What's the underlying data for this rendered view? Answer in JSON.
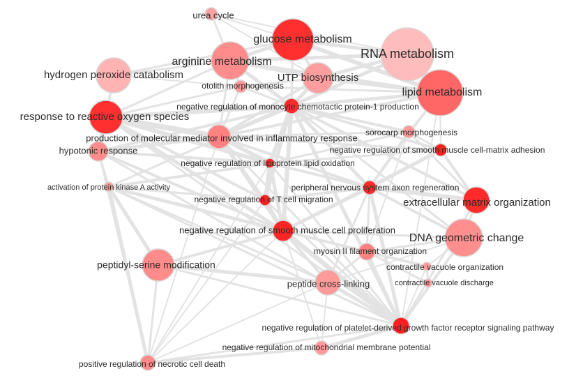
{
  "nodes": [
    {
      "id": "urea",
      "label": "urea cycle",
      "color": "#f8a2a2"
    },
    {
      "id": "glucose",
      "label": "glucose metabolism",
      "color": "#ff2f2f"
    },
    {
      "id": "rna",
      "label": "RNA metabolism",
      "color": "#ffbcbc"
    },
    {
      "id": "arginine",
      "label": "arginine metabolism",
      "color": "#ff8c8c"
    },
    {
      "id": "h2o2",
      "label": "hydrogen peroxide catabolism",
      "color": "#ffb3b3"
    },
    {
      "id": "utp",
      "label": "UTP biosynthesis",
      "color": "#ff9e9e"
    },
    {
      "id": "lipid",
      "label": "lipid metabolism",
      "color": "#ff6666"
    },
    {
      "id": "otolith",
      "label": "otolith morphogenesis",
      "color": "#ff9a9a"
    },
    {
      "id": "mcp1",
      "label": "negative regulation of monocyte chemotactic protein-1 production",
      "color": "#ff2a2a"
    },
    {
      "id": "ros",
      "label": "response to reactive oxygen species",
      "color": "#ff3030"
    },
    {
      "id": "inflam",
      "label": "production of molecular mediator involved in inflammatory response",
      "color": "#ff8282"
    },
    {
      "id": "sorocarp",
      "label": "sorocarp morphogenesis",
      "color": "#ff9999"
    },
    {
      "id": "hypotonic",
      "label": "hypotonic response",
      "color": "#ff8c8c"
    },
    {
      "id": "smcadh",
      "label": "negative regulation of smooth muscle cell-matrix adhesion",
      "color": "#ff2020"
    },
    {
      "id": "lipox",
      "label": "negative regulation of lipoprotein lipid oxidation",
      "color": "#ff2a2a"
    },
    {
      "id": "pka",
      "label": "activation of protein kinase A activity",
      "color": "#ff9a9a"
    },
    {
      "id": "pnsaxon",
      "label": "peripheral nervous system axon regeneration",
      "color": "#ff2a2a"
    },
    {
      "id": "tcell",
      "label": "negative regulation of T cell migration",
      "color": "#ff2020"
    },
    {
      "id": "ecm",
      "label": "extracellular matrix organization",
      "color": "#ff2a2a"
    },
    {
      "id": "smcprolif",
      "label": "negative regulation of smooth muscle cell proliferation",
      "color": "#ff2525"
    },
    {
      "id": "dna",
      "label": "DNA geometric change",
      "color": "#ff8f8f"
    },
    {
      "id": "myosin",
      "label": "myosin II filament organization",
      "color": "#ff8080"
    },
    {
      "id": "serine",
      "label": "peptidyl-serine modification",
      "color": "#ff8b8b"
    },
    {
      "id": "cvorg",
      "label": "contractile vacuole organization",
      "color": "#ff9a9a"
    },
    {
      "id": "crosslink",
      "label": "peptide cross-linking",
      "color": "#ff9a9a"
    },
    {
      "id": "cvdis",
      "label": "contractile vacuole discharge",
      "color": "#ff9a9a"
    },
    {
      "id": "pdgf",
      "label": "negative regulation of platelet-derived growth factor receptor signaling pathway",
      "color": "#ff1f1f"
    },
    {
      "id": "mito",
      "label": "negative regulation of mitochondrial membrane potential",
      "color": "#ff9a9a"
    },
    {
      "id": "necrotic",
      "label": "positive regulation of necrotic cell death",
      "color": "#ff8a8a"
    }
  ],
  "edges": [
    {
      "source": "glucose",
      "target": "rna",
      "weight": 5
    },
    {
      "source": "glucose",
      "target": "arginine",
      "weight": 5
    },
    {
      "source": "glucose",
      "target": "utp",
      "weight": 4
    },
    {
      "source": "glucose",
      "target": "lipid",
      "weight": 6
    },
    {
      "source": "glucose",
      "target": "urea",
      "weight": 2
    },
    {
      "source": "glucose",
      "target": "mcp1",
      "weight": 3
    },
    {
      "source": "glucose",
      "target": "h2o2",
      "weight": 3
    },
    {
      "source": "rna",
      "target": "lipid",
      "weight": 6
    },
    {
      "source": "rna",
      "target": "utp",
      "weight": 5
    },
    {
      "source": "rna",
      "target": "arginine",
      "weight": 5
    },
    {
      "source": "rna",
      "target": "mcp1",
      "weight": 5
    },
    {
      "source": "rna",
      "target": "urea",
      "weight": 2
    },
    {
      "source": "rna",
      "target": "inflam",
      "weight": 3
    },
    {
      "source": "urea",
      "target": "arginine",
      "weight": 3
    },
    {
      "source": "urea",
      "target": "utp",
      "weight": 2
    },
    {
      "source": "arginine",
      "target": "utp",
      "weight": 5
    },
    {
      "source": "arginine",
      "target": "h2o2",
      "weight": 3
    },
    {
      "source": "arginine",
      "target": "lipid",
      "weight": 4
    },
    {
      "source": "arginine",
      "target": "mcp1",
      "weight": 5
    },
    {
      "source": "arginine",
      "target": "otolith",
      "weight": 3
    },
    {
      "source": "arginine",
      "target": "ros",
      "weight": 3
    },
    {
      "source": "arginine",
      "target": "inflam",
      "weight": 3
    },
    {
      "source": "utp",
      "target": "lipid",
      "weight": 5
    },
    {
      "source": "utp",
      "target": "mcp1",
      "weight": 5
    },
    {
      "source": "utp",
      "target": "inflam",
      "weight": 4
    },
    {
      "source": "lipid",
      "target": "mcp1",
      "weight": 5
    },
    {
      "source": "lipid",
      "target": "inflam",
      "weight": 4
    },
    {
      "source": "lipid",
      "target": "sorocarp",
      "weight": 2
    },
    {
      "source": "lipid",
      "target": "smcadh",
      "weight": 2
    },
    {
      "source": "lipid",
      "target": "pnsaxon",
      "weight": 2
    },
    {
      "source": "h2o2",
      "target": "ros",
      "weight": 4
    },
    {
      "source": "h2o2",
      "target": "otolith",
      "weight": 2
    },
    {
      "source": "ros",
      "target": "inflam",
      "weight": 8
    },
    {
      "source": "ros",
      "target": "hypotonic",
      "weight": 7
    },
    {
      "source": "ros",
      "target": "mcp1",
      "weight": 6
    },
    {
      "source": "ros",
      "target": "lipox",
      "weight": 6
    },
    {
      "source": "ros",
      "target": "smcprolif",
      "weight": 5
    },
    {
      "source": "ros",
      "target": "tcell",
      "weight": 4
    },
    {
      "source": "ros",
      "target": "otolith",
      "weight": 3
    },
    {
      "source": "hypotonic",
      "target": "inflam",
      "weight": 5
    },
    {
      "source": "hypotonic",
      "target": "lipox",
      "weight": 4
    },
    {
      "source": "hypotonic",
      "target": "mcp1",
      "weight": 4
    },
    {
      "source": "inflam",
      "target": "mcp1",
      "weight": 6
    },
    {
      "source": "inflam",
      "target": "lipox",
      "weight": 6
    },
    {
      "source": "inflam",
      "target": "smcprolif",
      "weight": 5
    },
    {
      "source": "inflam",
      "target": "tcell",
      "weight": 4
    },
    {
      "source": "inflam",
      "target": "pnsaxon",
      "weight": 4
    },
    {
      "source": "inflam",
      "target": "sorocarp",
      "weight": 3
    },
    {
      "source": "inflam",
      "target": "smcadh",
      "weight": 3
    },
    {
      "source": "mcp1",
      "target": "lipox",
      "weight": 6
    },
    {
      "source": "mcp1",
      "target": "smcprolif",
      "weight": 6
    },
    {
      "source": "mcp1",
      "target": "tcell",
      "weight": 5
    },
    {
      "source": "mcp1",
      "target": "pnsaxon",
      "weight": 5
    },
    {
      "source": "mcp1",
      "target": "sorocarp",
      "weight": 4
    },
    {
      "source": "mcp1",
      "target": "smcadh",
      "weight": 4
    },
    {
      "source": "mcp1",
      "target": "ecm",
      "weight": 4
    },
    {
      "source": "mcp1",
      "target": "pdgf",
      "weight": 5
    },
    {
      "source": "mcp1",
      "target": "dna",
      "weight": 3
    },
    {
      "source": "mcp1",
      "target": "otolith",
      "weight": 3
    },
    {
      "source": "lipox",
      "target": "smcprolif",
      "weight": 5
    },
    {
      "source": "lipox",
      "target": "tcell",
      "weight": 5
    },
    {
      "source": "lipox",
      "target": "pnsaxon",
      "weight": 4
    },
    {
      "source": "lipox",
      "target": "smcadh",
      "weight": 3
    },
    {
      "source": "lipox",
      "target": "sorocarp",
      "weight": 3
    },
    {
      "source": "lipox",
      "target": "pdgf",
      "weight": 3
    },
    {
      "source": "tcell",
      "target": "smcprolif",
      "weight": 5
    },
    {
      "source": "tcell",
      "target": "pnsaxon",
      "weight": 4
    },
    {
      "source": "tcell",
      "target": "pdgf",
      "weight": 3
    },
    {
      "source": "pnsaxon",
      "target": "smcprolif",
      "weight": 5
    },
    {
      "source": "pnsaxon",
      "target": "ecm",
      "weight": 6
    },
    {
      "source": "pnsaxon",
      "target": "smcadh",
      "weight": 5
    },
    {
      "source": "pnsaxon",
      "target": "sorocarp",
      "weight": 4
    },
    {
      "source": "pnsaxon",
      "target": "dna",
      "weight": 4
    },
    {
      "source": "pnsaxon",
      "target": "myosin",
      "weight": 3
    },
    {
      "source": "pnsaxon",
      "target": "pdgf",
      "weight": 5
    },
    {
      "source": "pnsaxon",
      "target": "crosslink",
      "weight": 3
    },
    {
      "source": "smcadh",
      "target": "ecm",
      "weight": 4
    },
    {
      "source": "smcadh",
      "target": "smcprolif",
      "weight": 4
    },
    {
      "source": "smcadh",
      "target": "sorocarp",
      "weight": 3
    },
    {
      "source": "sorocarp",
      "target": "ecm",
      "weight": 3
    },
    {
      "source": "sorocarp",
      "target": "myosin",
      "weight": 2
    },
    {
      "source": "ecm",
      "target": "dna",
      "weight": 3
    },
    {
      "source": "ecm",
      "target": "pdgf",
      "weight": 3
    },
    {
      "source": "smcprolif",
      "target": "pdgf",
      "weight": 7
    },
    {
      "source": "smcprolif",
      "target": "serine",
      "weight": 4
    },
    {
      "source": "smcprolif",
      "target": "crosslink",
      "weight": 4
    },
    {
      "source": "smcprolif",
      "target": "myosin",
      "weight": 4
    },
    {
      "source": "smcprolif",
      "target": "pka",
      "weight": 5
    },
    {
      "source": "smcprolif",
      "target": "hypotonic",
      "weight": 4
    },
    {
      "source": "smcprolif",
      "target": "necrotic",
      "weight": 2
    },
    {
      "source": "smcprolif",
      "target": "mito",
      "weight": 2
    },
    {
      "source": "smcprolif",
      "target": "dna",
      "weight": 3
    },
    {
      "source": "pka",
      "target": "serine",
      "weight": 5
    },
    {
      "source": "pka",
      "target": "necrotic",
      "weight": 5
    },
    {
      "source": "pka",
      "target": "lipox",
      "weight": 4
    },
    {
      "source": "pka",
      "target": "crosslink",
      "weight": 3
    },
    {
      "source": "pka",
      "target": "tcell",
      "weight": 3
    },
    {
      "source": "pka",
      "target": "pdgf",
      "weight": 3
    },
    {
      "source": "pka",
      "target": "mcp1",
      "weight": 3
    },
    {
      "source": "serine",
      "target": "crosslink",
      "weight": 5
    },
    {
      "source": "serine",
      "target": "necrotic",
      "weight": 3
    },
    {
      "source": "serine",
      "target": "pdgf",
      "weight": 3
    },
    {
      "source": "crosslink",
      "target": "pdgf",
      "weight": 5
    },
    {
      "source": "crosslink",
      "target": "myosin",
      "weight": 3
    },
    {
      "source": "crosslink",
      "target": "necrotic",
      "weight": 2
    },
    {
      "source": "crosslink",
      "target": "mito",
      "weight": 2
    },
    {
      "source": "dna",
      "target": "pdgf",
      "weight": 4
    },
    {
      "source": "dna",
      "target": "myosin",
      "weight": 3
    },
    {
      "source": "dna",
      "target": "cvorg",
      "weight": 2
    },
    {
      "source": "dna",
      "target": "crosslink",
      "weight": 2
    },
    {
      "source": "myosin",
      "target": "pdgf",
      "weight": 4
    },
    {
      "source": "myosin",
      "target": "cvorg",
      "weight": 4
    },
    {
      "source": "myosin",
      "target": "cvdis",
      "weight": 3
    },
    {
      "source": "cvorg",
      "target": "cvdis",
      "weight": 3
    },
    {
      "source": "cvorg",
      "target": "pdgf",
      "weight": 2
    },
    {
      "source": "pdgf",
      "target": "mito",
      "weight": 5
    },
    {
      "source": "pdgf",
      "target": "necrotic",
      "weight": 3
    },
    {
      "source": "pdgf",
      "target": "inflam",
      "weight": 3
    },
    {
      "source": "pdgf",
      "target": "hypotonic",
      "weight": 3
    },
    {
      "source": "pdgf",
      "target": "lipid",
      "weight": 2
    },
    {
      "source": "mito",
      "target": "necrotic",
      "weight": 4
    },
    {
      "source": "necrotic",
      "target": "hypotonic",
      "weight": 2
    },
    {
      "source": "necrotic",
      "target": "inflam",
      "weight": 2
    },
    {
      "source": "necrotic",
      "target": "tcell",
      "weight": 2
    },
    {
      "source": "necrotic",
      "target": "lipox",
      "weight": 2
    },
    {
      "source": "otolith",
      "target": "inflam",
      "weight": 3
    },
    {
      "source": "otolith",
      "target": "lipid",
      "weight": 3
    },
    {
      "source": "otolith",
      "target": "utp",
      "weight": 3
    },
    {
      "source": "hypotonic",
      "target": "pka",
      "weight": 3
    },
    {
      "source": "ros",
      "target": "pdgf",
      "weight": 3
    }
  ]
}
